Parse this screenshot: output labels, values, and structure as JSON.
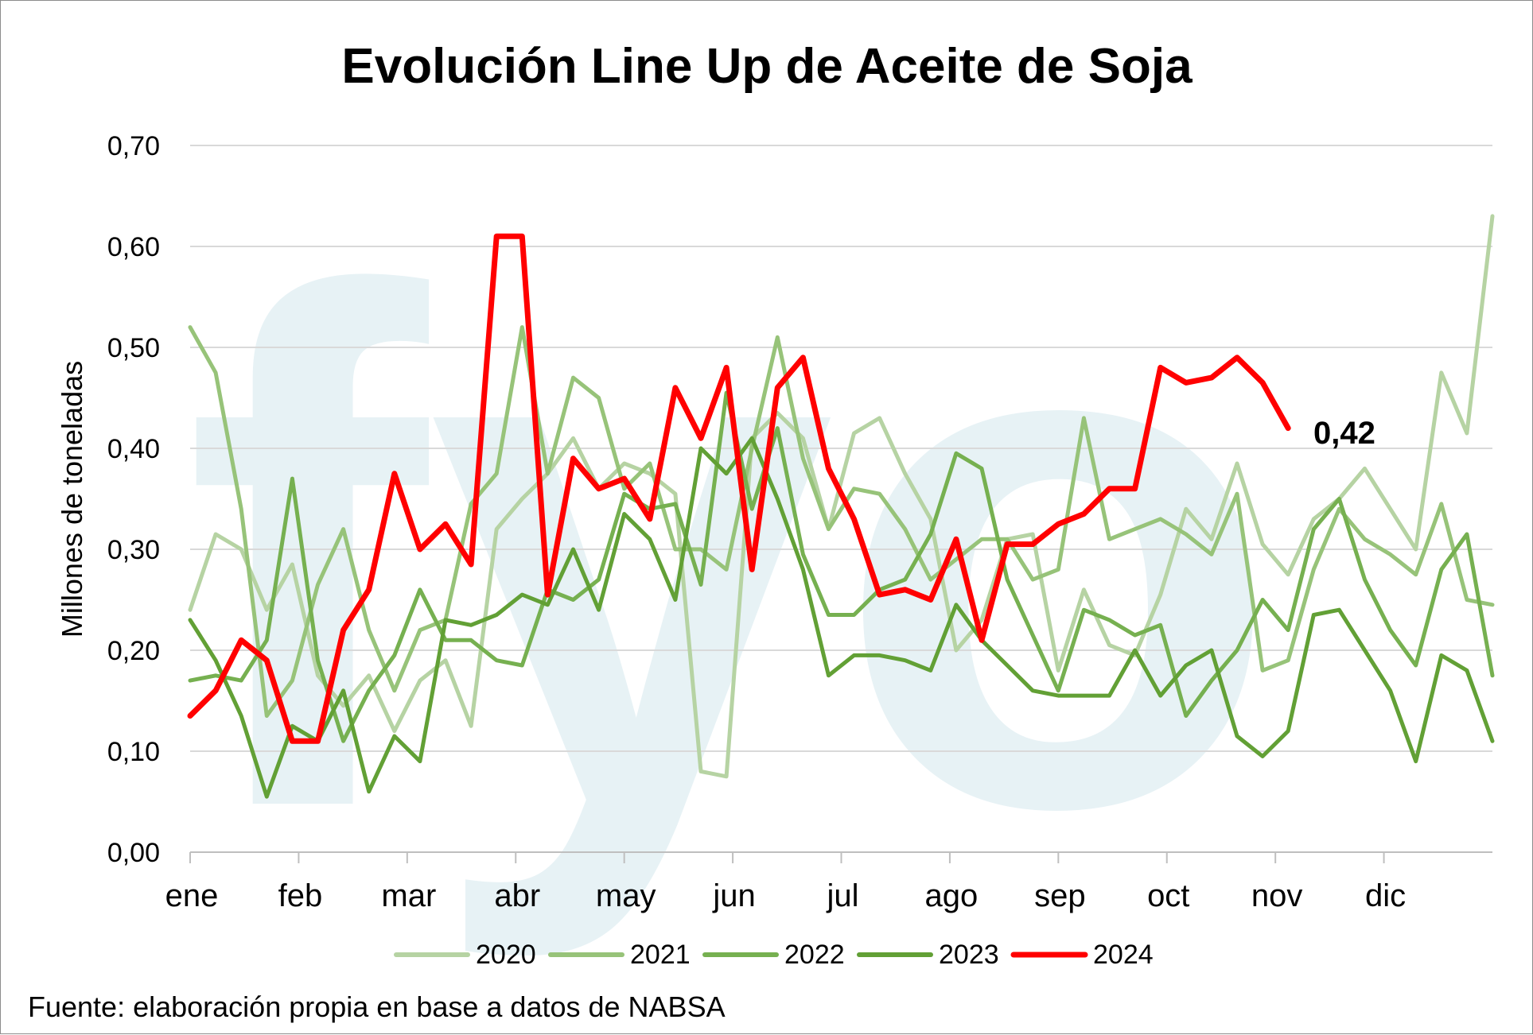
{
  "chart_data": {
    "type": "line",
    "title": "Evolución Line Up de Aceite de Soja",
    "ylabel": "Millones de toneladas",
    "xlabel": "",
    "ylim": [
      0,
      0.7
    ],
    "yticks": [
      0,
      0.1,
      0.2,
      0.3,
      0.4,
      0.5,
      0.6,
      0.7
    ],
    "yticks_labels": [
      "0,00",
      "0,10",
      "0,20",
      "0,30",
      "0,40",
      "0,50",
      "0,60",
      "0,70"
    ],
    "month_labels": [
      "ene",
      "feb",
      "mar",
      "abr",
      "may",
      "jun",
      "jul",
      "ago",
      "sep",
      "oct",
      "nov",
      "dic"
    ],
    "weeks_per_year": 52,
    "grid": true,
    "legend_position": "bottom",
    "series": [
      {
        "name": "2020",
        "color": "#b6d3a3",
        "values": [
          0.24,
          0.315,
          0.3,
          0.24,
          0.285,
          0.175,
          0.145,
          0.175,
          0.12,
          0.17,
          0.19,
          0.125,
          0.32,
          0.35,
          0.375,
          0.41,
          0.36,
          0.385,
          0.375,
          0.355,
          0.08,
          0.075,
          0.41,
          0.435,
          0.41,
          0.32,
          0.415,
          0.43,
          0.375,
          0.33,
          0.2,
          0.23,
          0.31,
          0.315,
          0.18,
          0.26,
          0.205,
          0.195,
          0.255,
          0.34,
          0.31,
          0.385,
          0.305,
          0.275,
          0.33,
          0.35,
          0.38,
          0.34,
          0.3,
          0.475,
          0.415,
          0.63
        ]
      },
      {
        "name": "2021",
        "color": "#97c379",
        "values": [
          0.52,
          0.475,
          0.34,
          0.135,
          0.17,
          0.265,
          0.32,
          0.22,
          0.16,
          0.22,
          0.23,
          0.345,
          0.375,
          0.52,
          0.375,
          0.47,
          0.45,
          0.36,
          0.385,
          0.3,
          0.3,
          0.28,
          0.4,
          0.51,
          0.39,
          0.32,
          0.36,
          0.355,
          0.32,
          0.27,
          0.29,
          0.31,
          0.31,
          0.27,
          0.28,
          0.43,
          0.31,
          0.32,
          0.33,
          0.315,
          0.295,
          0.355,
          0.18,
          0.19,
          0.28,
          0.34,
          0.31,
          0.295,
          0.275,
          0.345,
          0.25,
          0.245
        ]
      },
      {
        "name": "2022",
        "color": "#76b050",
        "values": [
          0.17,
          0.175,
          0.17,
          0.21,
          0.37,
          0.19,
          0.11,
          0.16,
          0.195,
          0.26,
          0.21,
          0.21,
          0.19,
          0.185,
          0.26,
          0.25,
          0.27,
          0.355,
          0.34,
          0.345,
          0.265,
          0.455,
          0.34,
          0.42,
          0.295,
          0.235,
          0.235,
          0.26,
          0.27,
          0.315,
          0.395,
          0.38,
          0.27,
          0.215,
          0.16,
          0.24,
          0.23,
          0.215,
          0.225,
          0.135,
          0.17,
          0.2,
          0.25,
          0.22,
          0.32,
          0.35,
          0.27,
          0.22,
          0.185,
          0.28,
          0.315,
          0.175
        ]
      },
      {
        "name": "2023",
        "color": "#62a035",
        "values": [
          0.23,
          0.19,
          0.135,
          0.055,
          0.125,
          0.11,
          0.16,
          0.06,
          0.115,
          0.09,
          0.23,
          0.225,
          0.235,
          0.255,
          0.245,
          0.3,
          0.24,
          0.335,
          0.31,
          0.25,
          0.4,
          0.375,
          0.41,
          0.35,
          0.28,
          0.175,
          0.195,
          0.195,
          0.19,
          0.18,
          0.245,
          0.21,
          0.185,
          0.16,
          0.155,
          0.155,
          0.155,
          0.2,
          0.155,
          0.185,
          0.2,
          0.115,
          0.095,
          0.12,
          0.235,
          0.24,
          0.2,
          0.16,
          0.09,
          0.195,
          0.18,
          0.11
        ]
      },
      {
        "name": "2024",
        "color": "#ff0000",
        "values": [
          0.135,
          0.16,
          0.21,
          0.19,
          0.11,
          0.11,
          0.22,
          0.26,
          0.375,
          0.3,
          0.325,
          0.285,
          0.61,
          0.61,
          0.255,
          0.39,
          0.36,
          0.37,
          0.33,
          0.46,
          0.41,
          0.48,
          0.28,
          0.46,
          0.49,
          0.38,
          0.33,
          0.255,
          0.26,
          0.25,
          0.31,
          0.21,
          0.305,
          0.305,
          0.325,
          0.335,
          0.36,
          0.36,
          0.48,
          0.465,
          0.47,
          0.49,
          0.465,
          0.42
        ]
      }
    ],
    "annotation": "0,42"
  },
  "source_text": "Fuente: elaboración propia en base a datos de NABSA",
  "watermark_text": "fyo"
}
